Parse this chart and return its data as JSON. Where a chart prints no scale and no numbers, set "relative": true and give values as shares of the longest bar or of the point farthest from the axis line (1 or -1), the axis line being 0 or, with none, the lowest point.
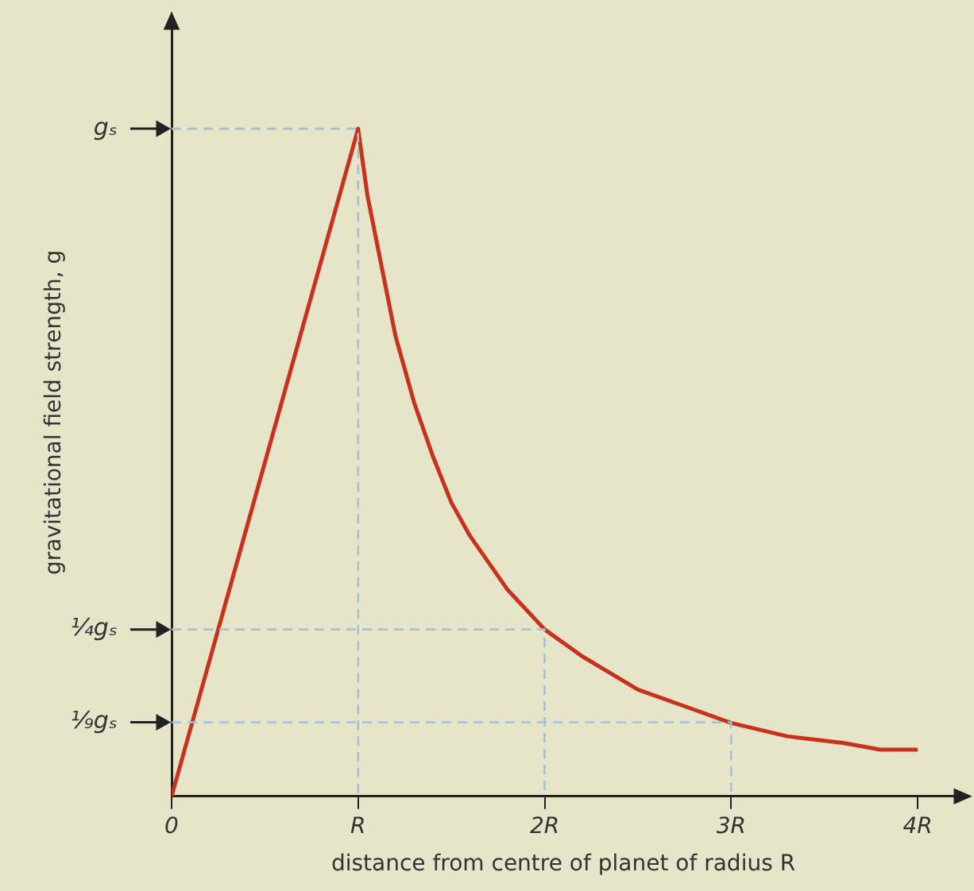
{
  "chart_data": {
    "type": "line",
    "xlabel": "distance from centre of planet of radius R",
    "ylabel": "gravitational field strength, g",
    "relative": true,
    "xlim": [
      0,
      4.2
    ],
    "xticks": [
      0,
      {
        "value": 1,
        "label": "R"
      },
      {
        "value": 2,
        "label": "2R"
      },
      {
        "value": 3,
        "label": "3R"
      },
      {
        "value": 4,
        "label": "4R"
      }
    ],
    "grid": false,
    "legend": false,
    "marker": "none",
    "series": [
      {
        "type": "line",
        "name": "gₛ",
        "color": "#a3c2d6",
        "line_style": "dashed",
        "x": [
          0,
          1,
          1
        ],
        "values": [
          1,
          1,
          0
        ]
      },
      {
        "type": "line",
        "name": "¼gₛ",
        "color": "#a3c2d6",
        "line_style": "dashed",
        "x": [
          0,
          2,
          2
        ],
        "values": [
          0.25,
          0.25,
          0
        ]
      },
      {
        "type": "line",
        "name": "⅑gₛ",
        "color": "#a3c2d6",
        "line_style": "dashed",
        "x": [
          0,
          3,
          3
        ],
        "values": [
          0.111,
          0.111,
          0
        ]
      },
      {
        "type": "line",
        "color": "#c8311c",
        "line_style": "solid",
        "x": [
          0,
          1,
          1.05,
          1.1,
          1.2,
          1.3,
          1.4,
          1.5,
          1.6,
          1.8,
          2,
          2.2,
          2.5,
          2.8,
          3,
          3.3,
          3.6,
          3.8,
          4
        ],
        "values": [
          0,
          1,
          0.9,
          0.83,
          0.69,
          0.59,
          0.51,
          0.44,
          0.39,
          0.31,
          0.25,
          0.21,
          0.16,
          0.13,
          0.11,
          0.09,
          0.08,
          0.07,
          0.07
        ]
      }
    ]
  }
}
